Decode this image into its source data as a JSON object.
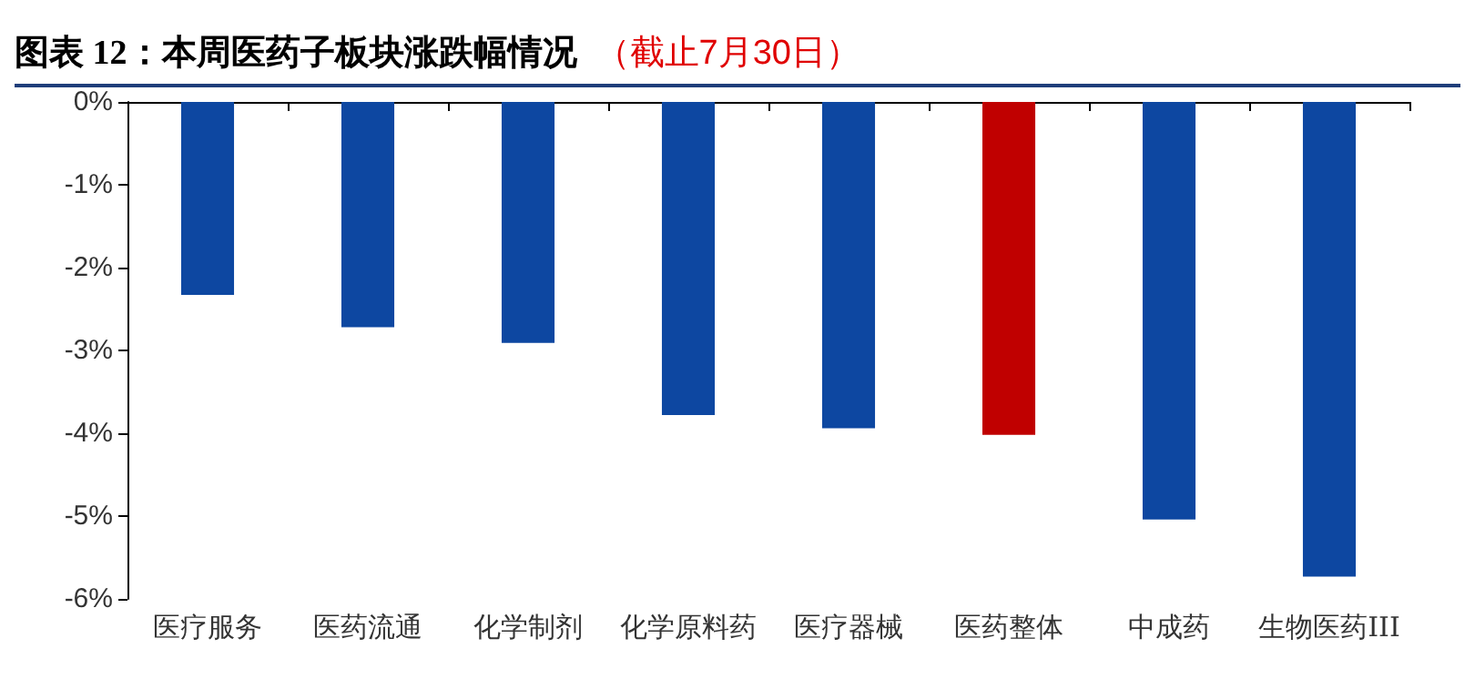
{
  "chart_data": {
    "type": "bar",
    "title": "图表 12：本周医药子板块涨跌幅情况",
    "subtitle": "（截止7月30日）",
    "categories": [
      "医疗服务",
      "医药流通",
      "化学制剂",
      "化学原料药",
      "医疗器械",
      "医药整体",
      "中成药",
      "生物医药III"
    ],
    "values": [
      -2.33,
      -2.72,
      -2.91,
      -3.78,
      -3.94,
      -4.02,
      -5.04,
      -5.73
    ],
    "colors": [
      "#0d47a1",
      "#0d47a1",
      "#0d47a1",
      "#0d47a1",
      "#0d47a1",
      "#c00000",
      "#0d47a1",
      "#0d47a1"
    ],
    "ylim": [
      -6,
      0
    ],
    "yticks": [
      {
        "value": -6,
        "label": "-6%"
      },
      {
        "value": -5,
        "label": "-5%"
      },
      {
        "value": -4,
        "label": "-4%"
      },
      {
        "value": -3,
        "label": "-3%"
      },
      {
        "value": -2,
        "label": "-2%"
      },
      {
        "value": -1,
        "label": "-1%"
      },
      {
        "value": 0,
        "label": "0%"
      }
    ],
    "grid": false
  }
}
